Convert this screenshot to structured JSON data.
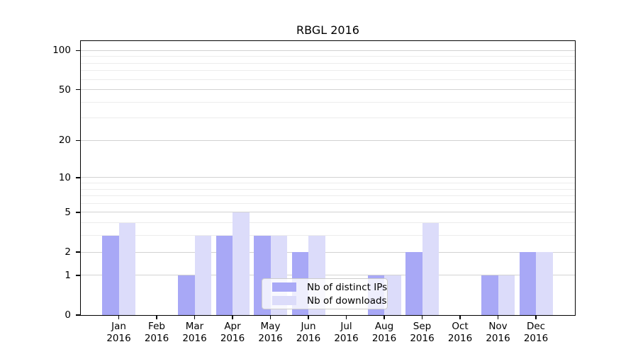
{
  "chart_data": {
    "type": "bar",
    "title": "RBGL 2016",
    "categories": [
      "Jan",
      "Feb",
      "Mar",
      "Apr",
      "May",
      "Jun",
      "Jul",
      "Aug",
      "Sep",
      "Oct",
      "Nov",
      "Dec"
    ],
    "category_sublabel": "2016",
    "series": [
      {
        "name": "Nb of distinct IPs",
        "color": "#a8a8f6",
        "values": [
          3,
          0,
          1,
          3,
          3,
          2,
          0,
          1,
          2,
          0,
          1,
          2
        ]
      },
      {
        "name": "Nb of downloads",
        "color": "#dcdcfa",
        "values": [
          4,
          0,
          3,
          5,
          3,
          3,
          0,
          1,
          4,
          0,
          1,
          2
        ]
      }
    ],
    "xlabel": "",
    "ylabel": "",
    "y_axis": {
      "scale": "log1p",
      "min": 0,
      "max": 118,
      "major_ticks": [
        0,
        1,
        2,
        5,
        10,
        20,
        50,
        100
      ],
      "minor_ticks": [
        3,
        4,
        6,
        7,
        8,
        9,
        30,
        40,
        60,
        70,
        80,
        90
      ]
    },
    "grid": "horizontal",
    "legend_position": "lower center"
  },
  "colors": {
    "background": "#ffffff",
    "spine": "#000000",
    "grid_major": "#d2d2d2",
    "grid_minor": "#ececec",
    "text": "#000000",
    "legend_border": "#cccccc",
    "legend_background": "rgba(255,255,255,0.8)"
  }
}
